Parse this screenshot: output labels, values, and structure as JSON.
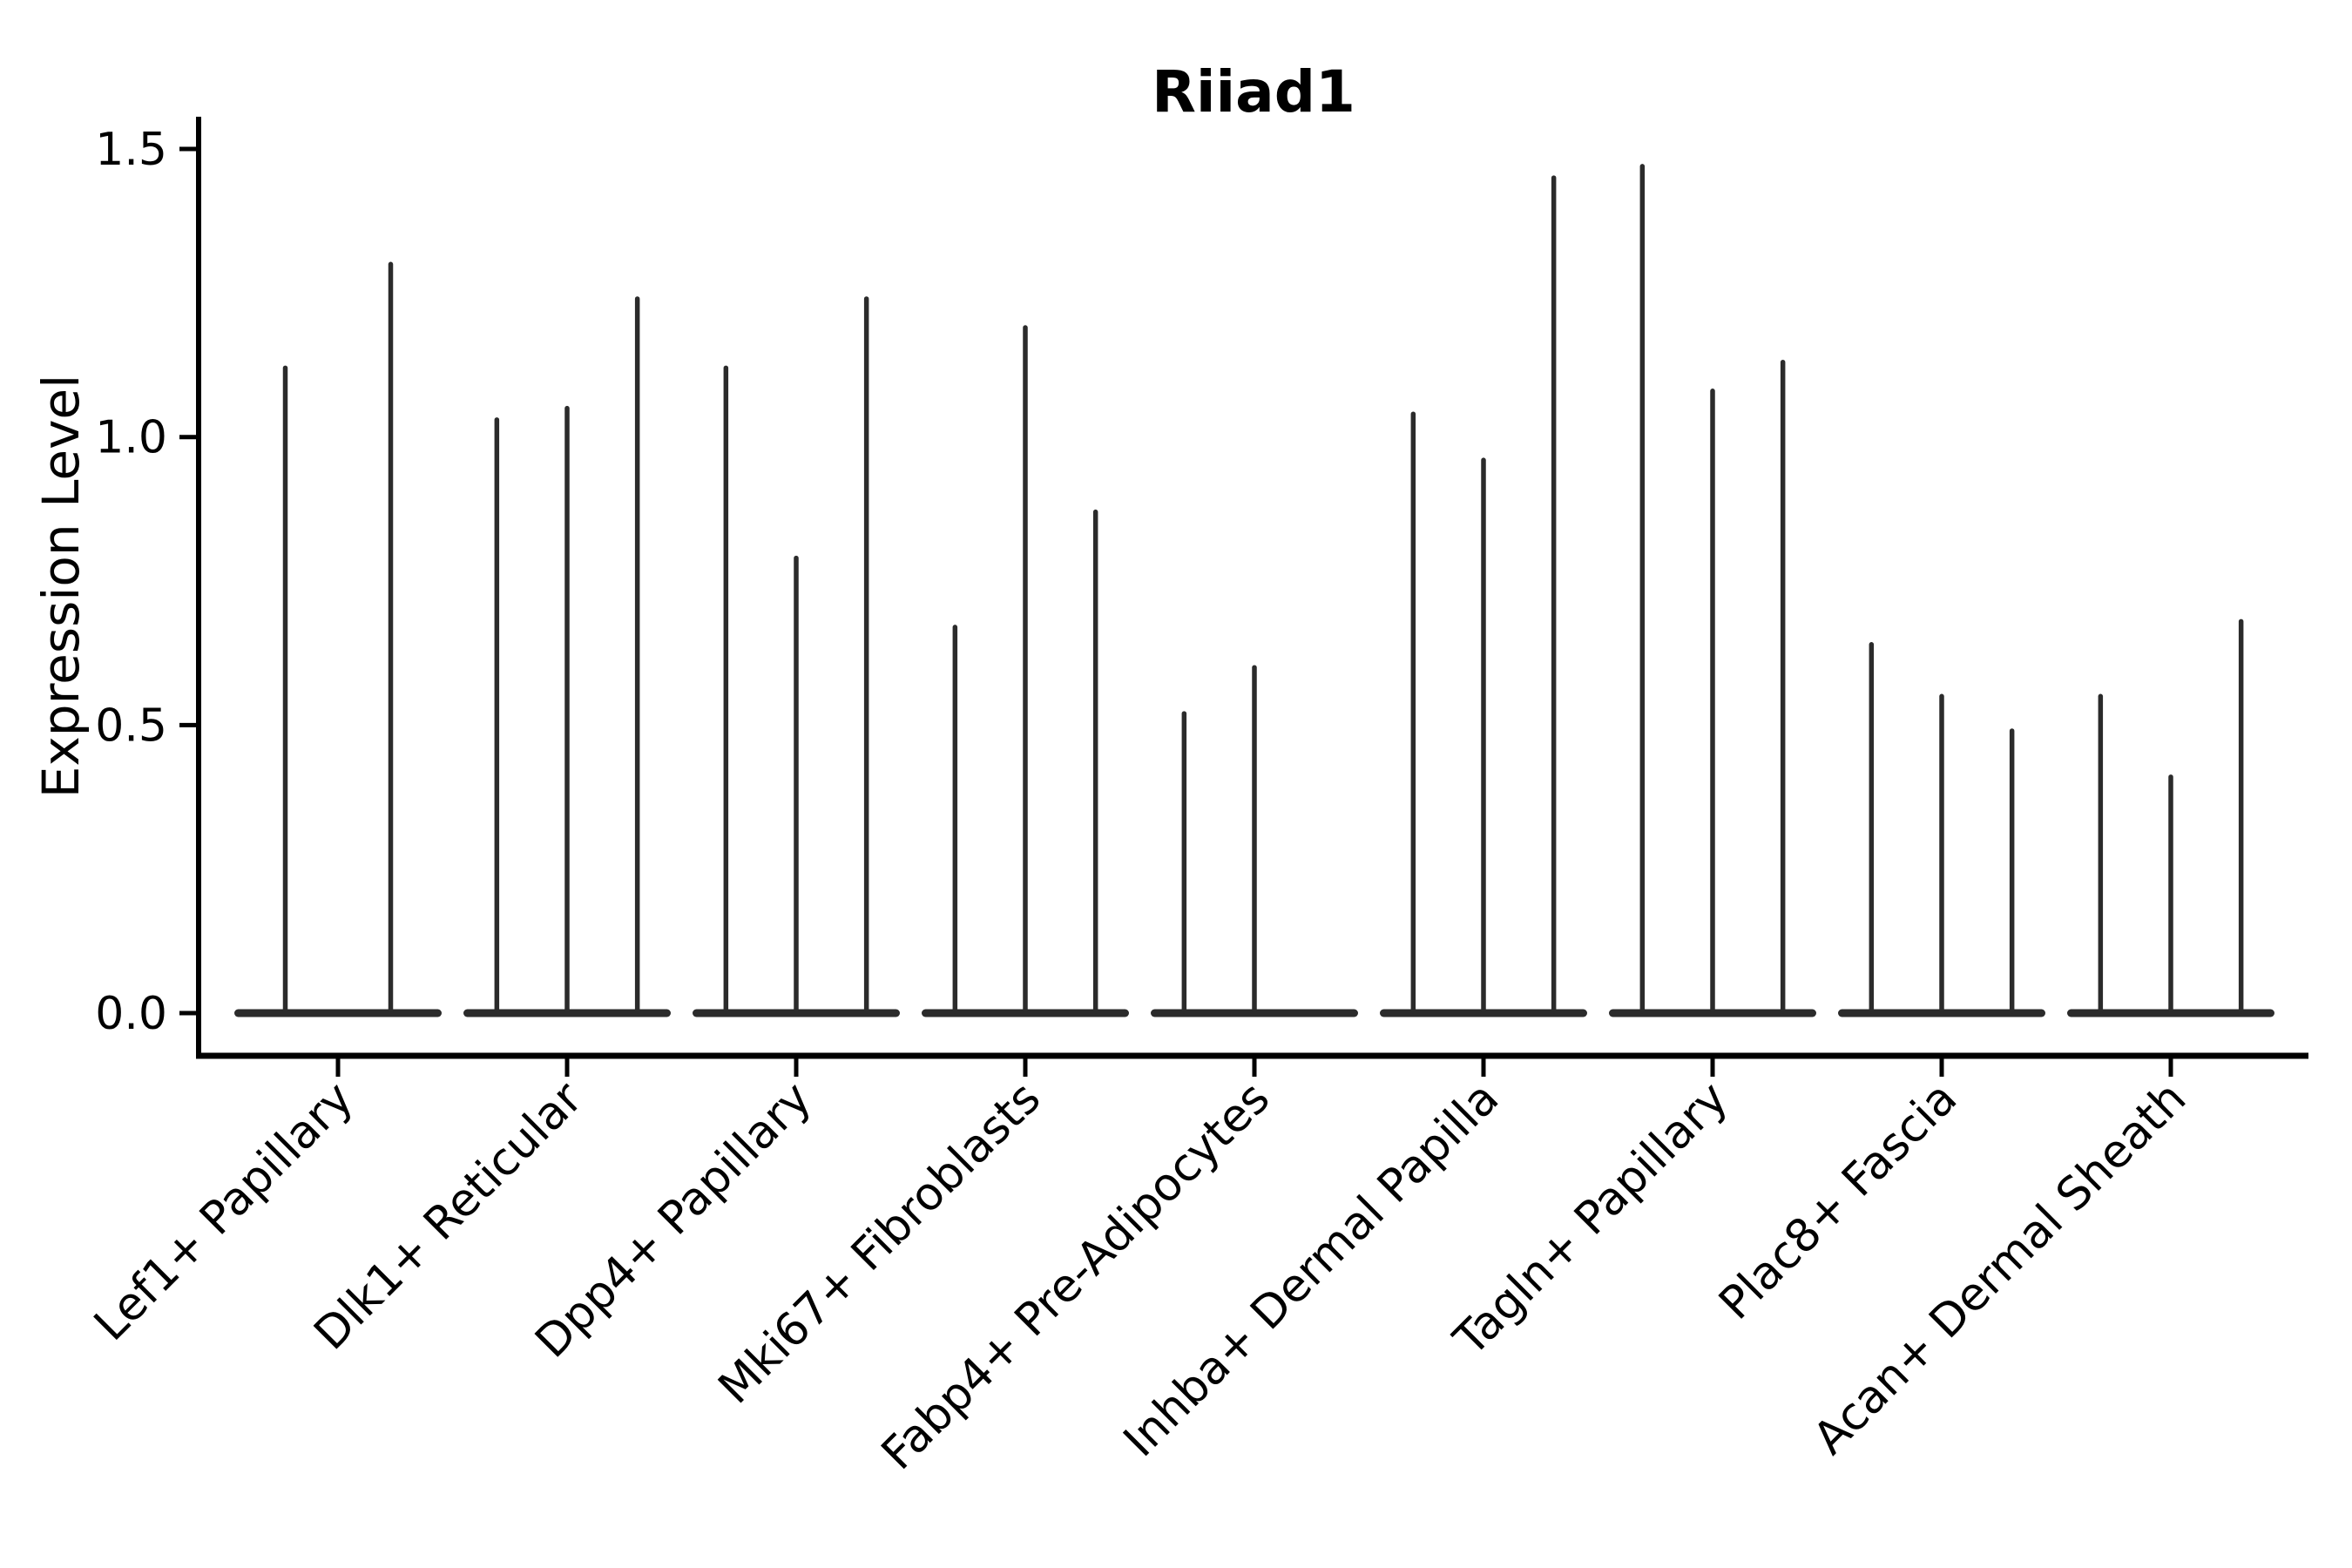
{
  "chart_data": {
    "type": "violin",
    "title": "Riiad1",
    "xlabel": "",
    "ylabel": "Expression Level",
    "yticks": [
      0.0,
      0.5,
      1.0,
      1.5
    ],
    "ylim": [
      -0.07,
      1.56
    ],
    "grid": false,
    "legend": null,
    "categories": [
      "Lef1+ Papillary",
      "Dlk1+ Reticular",
      "Dpp4+ Papillary",
      "Mki67+ Fibroblasts",
      "Fabp4+ Pre-Adipocytes",
      "Inhba+ Dermal Papilla",
      "Tagln+ Papillary",
      "Plac8+ Fascia",
      "Acan+ Dermal Sheath"
    ],
    "groups": [
      {
        "category": "Lef1+ Papillary",
        "violin_max": [
          1.12,
          1.3
        ]
      },
      {
        "category": "Dlk1+ Reticular",
        "violin_max": [
          1.03,
          1.05,
          1.24
        ]
      },
      {
        "category": "Dpp4+ Papillary",
        "violin_max": [
          1.12,
          0.79,
          1.24
        ]
      },
      {
        "category": "Mki67+ Fibroblasts",
        "violin_max": [
          0.67,
          1.19,
          0.87
        ]
      },
      {
        "category": "Fabp4+ Pre-Adipocytes",
        "violin_max": [
          0.52,
          0.6,
          0.0
        ]
      },
      {
        "category": "Inhba+ Dermal Papilla",
        "violin_max": [
          1.04,
          0.96,
          1.45
        ]
      },
      {
        "category": "Tagln+ Papillary",
        "violin_max": [
          1.47,
          1.08,
          1.13
        ]
      },
      {
        "category": "Plac8+ Fascia",
        "violin_max": [
          0.64,
          0.55,
          0.49
        ]
      },
      {
        "category": "Acan+ Dermal Sheath",
        "violin_max": [
          0.55,
          0.41,
          0.68
        ]
      }
    ],
    "violin_shape_note": "violins collapsed to thin spikes with wide flat base at 0 (most cells zero expression)",
    "colors": {
      "violin": "#2b2b2b",
      "axis": "#000000",
      "text": "#000000",
      "background": "#ffffff"
    }
  }
}
